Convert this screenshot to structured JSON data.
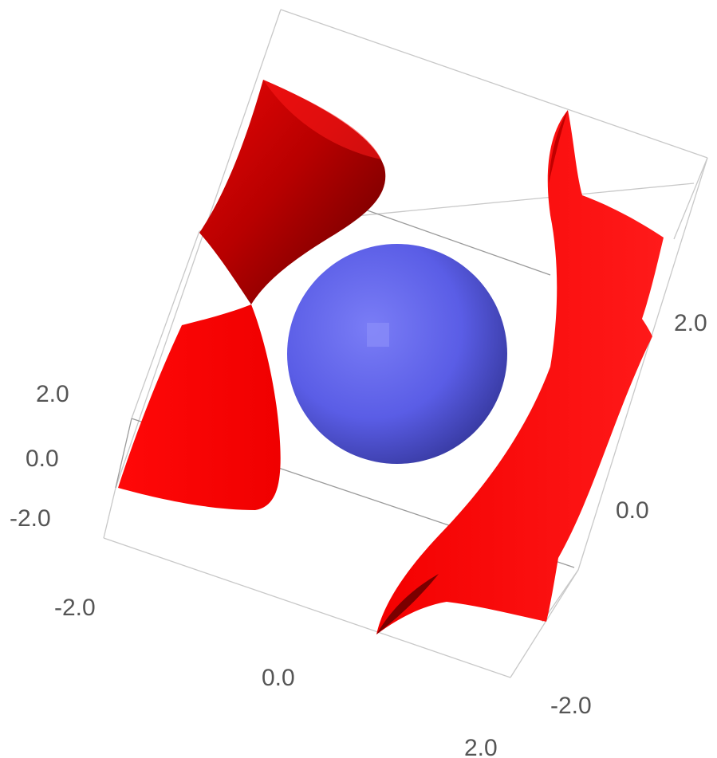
{
  "colors": {
    "background": "#ffffff",
    "surface_red": "#ff0a0a",
    "surface_red_shadow": "#6e0000",
    "sphere_blue": "#6366f1",
    "sphere_blue_shadow": "#2a2c8a",
    "tick_text": "#555555",
    "box_edge": "#c8c8c8"
  },
  "axes": {
    "vertical_left": {
      "ticks": [
        "2.0",
        "0.0",
        "-2.0"
      ]
    },
    "front_bottom": {
      "ticks": [
        "-2.0",
        "0.0",
        "2.0"
      ]
    },
    "right_side": {
      "ticks": [
        "2.0",
        "0.0",
        "-2.0"
      ]
    }
  }
}
